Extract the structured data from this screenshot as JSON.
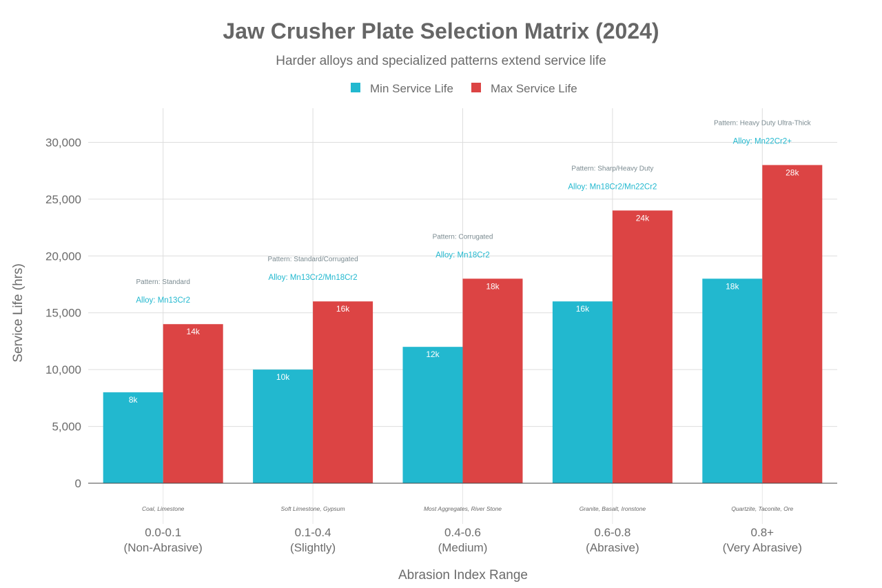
{
  "chart_data": {
    "type": "bar",
    "title": "Jaw Crusher Plate Selection Matrix (2024)",
    "subtitle": "Harder alloys and specialized patterns extend service life",
    "xlabel": "Abrasion Index Range",
    "ylabel": "Service Life (hrs)",
    "ylim": [
      0,
      33000
    ],
    "yticks": [
      0,
      5000,
      10000,
      15000,
      20000,
      25000,
      30000
    ],
    "ytick_labels": [
      "0",
      "5,000",
      "10,000",
      "15,000",
      "20,000",
      "25,000",
      "30,000"
    ],
    "grid": true,
    "legend_position": "top-center",
    "categories": [
      [
        "0.0-0.1",
        "(Non-Abrasive)"
      ],
      [
        "0.1-0.4",
        "(Slightly)"
      ],
      [
        "0.4-0.6",
        "(Medium)"
      ],
      [
        "0.6-0.8",
        "(Abrasive)"
      ],
      [
        "0.8+",
        "(Very Abrasive)"
      ]
    ],
    "materials": [
      "Coal, Limestone",
      "Soft Limestone, Gypsum",
      "Most Aggregates, River Stone",
      "Granite, Basalt, Ironstone",
      "Quartzite, Taconite, Ore"
    ],
    "patterns": [
      "Pattern: Standard",
      "Pattern: Standard/Corrugated",
      "Pattern: Corrugated",
      "Pattern: Sharp/Heavy Duty",
      "Pattern: Heavy Duty Ultra-Thick"
    ],
    "alloys": [
      "Alloy: Mn13Cr2",
      "Alloy: Mn13Cr2/Mn18Cr2",
      "Alloy: Mn18Cr2",
      "Alloy: Mn18Cr2/Mn22Cr2",
      "Alloy: Mn22Cr2+"
    ],
    "series": [
      {
        "name": "Min Service Life",
        "color": "#22b8cf",
        "values": [
          8000,
          10000,
          12000,
          16000,
          18000
        ],
        "labels": [
          "8k",
          "10k",
          "12k",
          "16k",
          "18k"
        ]
      },
      {
        "name": "Max Service Life",
        "color": "#dc4444",
        "values": [
          14000,
          16000,
          18000,
          24000,
          28000
        ],
        "labels": [
          "14k",
          "16k",
          "18k",
          "24k",
          "28k"
        ]
      }
    ],
    "colors": {
      "title": "#666666",
      "text": "#6b6b6b",
      "pattern": "#7a8a90",
      "alloy": "#22b8cf",
      "grid": "#dddddd"
    }
  }
}
